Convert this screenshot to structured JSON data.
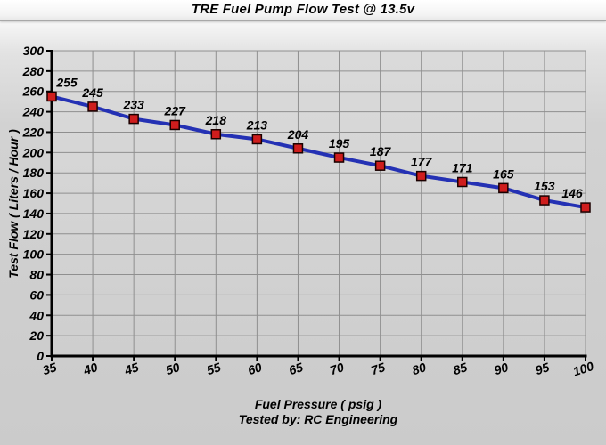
{
  "window": {
    "title": "TRE Fuel Pump Flow Test @ 13.5v"
  },
  "chart_data": {
    "type": "line",
    "title": "TRE Fuel Pump Flow Test @ 13.5v",
    "series_name": "Test Flow",
    "x": [
      35,
      40,
      45,
      50,
      55,
      60,
      65,
      70,
      75,
      80,
      85,
      90,
      95,
      100
    ],
    "values": [
      255,
      245,
      233,
      227,
      218,
      213,
      204,
      195,
      187,
      177,
      171,
      165,
      153,
      146
    ],
    "xlabel": "Fuel Pressure ( psig )",
    "ylabel": "Test Flow ( Liters / Hour )",
    "footer": "Tested by: RC Engineering",
    "xlim": [
      35,
      100
    ],
    "ylim": [
      0,
      300
    ],
    "x_tick_step": 5,
    "y_tick_step": 20,
    "grid": true,
    "data_labels": true,
    "legend": "none",
    "colors": {
      "line": "#2431b4",
      "marker_fill": "#cf1d1d",
      "marker_border": "#1a0000",
      "grid": "#8f8f8f",
      "axis": "#000000",
      "plot_bg_top": "#dadada",
      "plot_bg_bottom": "#cecece",
      "text": "#000000"
    }
  }
}
